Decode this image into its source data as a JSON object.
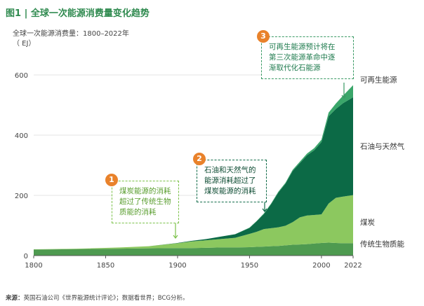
{
  "figure": {
    "title": "图1 | 全球一次能源消费量变化趋势",
    "subtitle": "全球一次能源消费量：1800–2022年",
    "unit": "（ EJ）",
    "source_label": "来源：",
    "source_text": "英国石油公司《世界能源统计评论》；数据看世界；BCG分析。"
  },
  "callouts": [
    {
      "num": "1",
      "text": "煤炭能源的消耗\n超过了传统生物\n质能的消耗"
    },
    {
      "num": "2",
      "text": "石油和天然气的\n能源消耗超过了\n煤炭能源的消耗"
    },
    {
      "num": "3",
      "text": "可再生能源预计将在\n第三次能源革命中逐\n渐取代化石能源"
    }
  ],
  "colors": {
    "biomass": "#4e9a50",
    "coal": "#8cc85f",
    "oil_gas": "#0c6a46",
    "renewables": "#3aa66a",
    "badge": "#e9822b"
  },
  "chart_data": {
    "type": "area",
    "stacked": true,
    "title": "全球一次能源消费量：1800–2022年",
    "ylabel": "（ EJ）",
    "xlabel": "",
    "xlim": [
      1800,
      2022
    ],
    "ylim": [
      0,
      600
    ],
    "x_ticks": [
      1800,
      1850,
      1900,
      1950,
      2000,
      2022
    ],
    "y_ticks": [
      0,
      200,
      400,
      600
    ],
    "x": [
      1800,
      1820,
      1840,
      1860,
      1880,
      1900,
      1910,
      1920,
      1930,
      1940,
      1950,
      1955,
      1960,
      1965,
      1970,
      1975,
      1980,
      1985,
      1990,
      1995,
      2000,
      2005,
      2010,
      2015,
      2022
    ],
    "series": [
      {
        "name": "传统生物质能",
        "values": [
          20,
          21,
          22,
          23,
          24,
          25,
          25,
          26,
          27,
          27,
          28,
          29,
          30,
          31,
          32,
          34,
          36,
          37,
          38,
          40,
          42,
          43,
          42,
          41,
          41
        ]
      },
      {
        "name": "煤炭",
        "values": [
          1,
          1,
          2,
          4,
          7,
          16,
          22,
          25,
          28,
          32,
          44,
          50,
          58,
          60,
          62,
          65,
          75,
          90,
          95,
          95,
          95,
          130,
          150,
          155,
          160
        ]
      },
      {
        "name": "石油与天然气",
        "values": [
          0,
          0,
          0,
          0,
          0,
          1,
          2,
          4,
          8,
          12,
          20,
          35,
          50,
          80,
          115,
          140,
          170,
          180,
          200,
          215,
          240,
          290,
          295,
          310,
          325
        ]
      },
      {
        "name": "可再生能源",
        "values": [
          0,
          0,
          0,
          0,
          0,
          0,
          0,
          0,
          0,
          0,
          1,
          1,
          2,
          2,
          3,
          3,
          4,
          5,
          6,
          7,
          8,
          12,
          18,
          25,
          40
        ]
      }
    ]
  }
}
